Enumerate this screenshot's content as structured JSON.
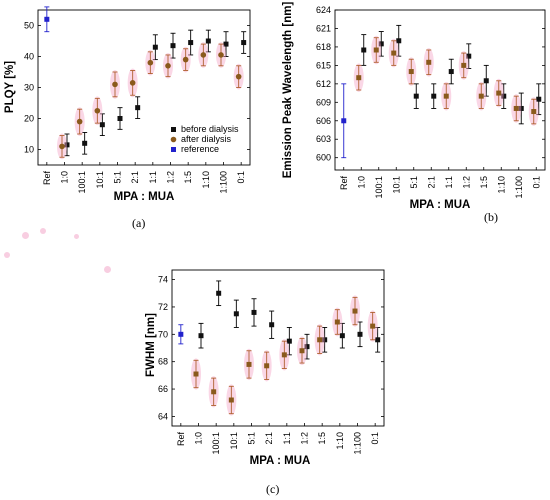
{
  "categories": [
    "Ref",
    "1:0",
    "100:1",
    "10:1",
    "5:1",
    "2:1",
    "1:1",
    "1:2",
    "1:5",
    "1:10",
    "1:100",
    "0:1"
  ],
  "colors": {
    "before": "#111111",
    "after": "#8a5a1c",
    "reference": "#2222cc",
    "errbar_before": "#000000",
    "errbar_after": "#b06030",
    "bg_pink": "#f3a6c8"
  },
  "chart_data": [
    {
      "id": "a",
      "type": "scatter",
      "caption": "(a)",
      "ylabel": "PLQY [%]",
      "xlabel": "MPA : MUA",
      "ylim": [
        5,
        55
      ],
      "yticks": [
        10,
        20,
        30,
        40,
        50
      ],
      "grid": false,
      "legend_position": "center-right",
      "series": [
        {
          "name": "before dialysis",
          "key": "before",
          "x": [
            "1:0",
            "100:1",
            "10:1",
            "5:1",
            "2:1",
            "1:1",
            "1:2",
            "1:5",
            "1:10",
            "1:100",
            "0:1"
          ],
          "values": [
            11.5,
            12.0,
            18.0,
            20.0,
            23.5,
            43.0,
            43.5,
            44.5,
            45.0,
            44.0,
            44.5
          ],
          "err": [
            3.5,
            3.5,
            3.5,
            3.5,
            3.5,
            4.0,
            4.0,
            4.0,
            3.5,
            4.0,
            3.5
          ]
        },
        {
          "name": "after dialysis",
          "key": "after",
          "x": [
            "1:0",
            "100:1",
            "10:1",
            "5:1",
            "2:1",
            "1:1",
            "1:2",
            "1:5",
            "1:10",
            "1:100",
            "0:1"
          ],
          "values": [
            11.0,
            19.0,
            22.5,
            31.0,
            31.5,
            38.0,
            37.0,
            39.0,
            40.5,
            40.5,
            33.5
          ],
          "err": [
            3.5,
            4.0,
            4.0,
            4.0,
            4.0,
            3.5,
            3.5,
            3.5,
            3.5,
            3.5,
            3.5
          ]
        },
        {
          "name": "reference",
          "key": "reference",
          "x": [
            "Ref"
          ],
          "values": [
            52.0
          ],
          "err": [
            4.0
          ]
        }
      ]
    },
    {
      "id": "b",
      "type": "scatter",
      "caption": "(b)",
      "ylabel": "Emission Peak Wavelength [nm]",
      "xlabel": "MPA : MUA",
      "ylim": [
        598,
        624
      ],
      "yticks": [
        600,
        603,
        606,
        609,
        612,
        615,
        618,
        621,
        624
      ],
      "grid": false,
      "series": [
        {
          "name": "",
          "key": "before",
          "x": [
            "1:0",
            "100:1",
            "10:1",
            "5:1",
            "2:1",
            "1:1",
            "1:2",
            "1:5",
            "1:10",
            "1:100",
            "0:1"
          ],
          "values": [
            617.5,
            618.5,
            619.0,
            610.0,
            610.0,
            614.0,
            616.5,
            612.5,
            610.0,
            608.0,
            609.5
          ],
          "err": [
            2.5,
            2.0,
            2.5,
            2.0,
            2.0,
            2.0,
            2.0,
            2.5,
            2.0,
            2.5,
            2.5
          ]
        },
        {
          "name": "",
          "key": "after",
          "x": [
            "1:0",
            "100:1",
            "10:1",
            "5:1",
            "2:1",
            "1:1",
            "1:2",
            "1:5",
            "1:10",
            "1:100",
            "0:1"
          ],
          "values": [
            613.0,
            617.5,
            617.0,
            614.0,
            615.5,
            610.0,
            615.0,
            610.0,
            610.5,
            608.0,
            607.5
          ],
          "err": [
            2.0,
            2.0,
            2.0,
            2.0,
            2.0,
            2.0,
            2.0,
            2.0,
            2.0,
            2.0,
            2.0
          ]
        },
        {
          "name": "",
          "key": "reference",
          "x": [
            "Ref"
          ],
          "values": [
            606.0
          ],
          "err": [
            6.0
          ]
        }
      ]
    },
    {
      "id": "c",
      "type": "scatter",
      "caption": "(c)",
      "ylabel": "FWHM [nm]",
      "xlabel": "MPA : MUA",
      "ylim": [
        63.3,
        74.7
      ],
      "yticks": [
        64,
        66,
        68,
        70,
        72,
        74
      ],
      "grid": false,
      "series": [
        {
          "name": "",
          "key": "before",
          "x": [
            "1:0",
            "100:1",
            "10:1",
            "5:1",
            "2:1",
            "1:1",
            "1:2",
            "1:5",
            "1:10",
            "1:100",
            "0:1"
          ],
          "values": [
            69.9,
            73.0,
            71.5,
            71.6,
            70.7,
            69.5,
            69.1,
            69.6,
            69.9,
            70.0,
            69.6
          ],
          "err": [
            0.9,
            0.9,
            1.0,
            1.0,
            1.0,
            1.0,
            0.9,
            0.9,
            0.9,
            0.9,
            0.9
          ]
        },
        {
          "name": "",
          "key": "after",
          "x": [
            "1:0",
            "100:1",
            "10:1",
            "5:1",
            "2:1",
            "1:1",
            "1:2",
            "1:5",
            "1:10",
            "1:100",
            "0:1"
          ],
          "values": [
            67.1,
            65.8,
            65.2,
            67.8,
            67.7,
            68.5,
            68.8,
            69.6,
            70.9,
            71.7,
            70.6
          ],
          "err": [
            1.0,
            1.0,
            1.0,
            1.0,
            1.0,
            1.0,
            0.9,
            1.0,
            0.9,
            1.0,
            1.0
          ]
        },
        {
          "name": "",
          "key": "reference",
          "x": [
            "Ref"
          ],
          "values": [
            70.0
          ],
          "err": [
            0.7
          ]
        }
      ]
    }
  ]
}
